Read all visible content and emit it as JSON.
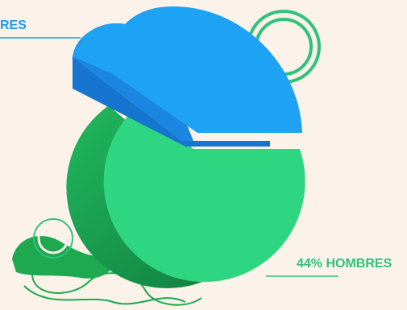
{
  "labels": {
    "top_left": "RES",
    "bottom_right": "44% HOMBRES"
  }
}
